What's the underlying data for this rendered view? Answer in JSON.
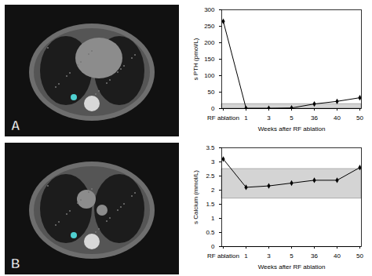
{
  "panel_labels": [
    "A",
    "B"
  ],
  "chart_data": [
    {
      "type": "line",
      "x_label": "Weeks after RF ablation",
      "y_label": "s PTH (pmol/L)",
      "categories": [
        "RF ablation",
        "1",
        "3",
        "5",
        "36",
        "40",
        "50"
      ],
      "values": [
        265,
        1,
        1,
        2,
        14,
        22,
        33
      ],
      "reference_range": [
        1,
        14
      ],
      "color": "#000000",
      "marker": "diamond",
      "ylim": [
        0,
        300
      ],
      "yticks": [
        0,
        50,
        100,
        150,
        200,
        250,
        300
      ]
    },
    {
      "type": "line",
      "x_label": "Weeks after RF ablation",
      "y_label": "s Calcium (mmol/L)",
      "categories": [
        "RF ablation",
        "1",
        "3",
        "5",
        "36",
        "40",
        "50"
      ],
      "values": [
        3.1,
        2.1,
        2.15,
        2.25,
        2.35,
        2.35,
        2.8
      ],
      "reference_range": [
        1.7,
        2.75
      ],
      "color": "#000000",
      "marker": "diamond",
      "ylim": [
        0,
        3.5
      ],
      "yticks": [
        0,
        0.5,
        1,
        1.5,
        2,
        2.5,
        3,
        3.5
      ]
    }
  ]
}
